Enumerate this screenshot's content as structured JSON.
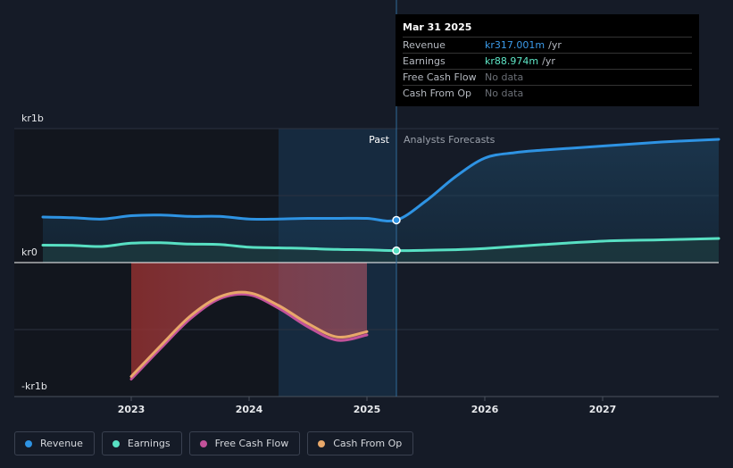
{
  "colors": {
    "revenue": "#2e93e3",
    "earnings": "#58e0c3",
    "free_cash_flow": "#c2529a",
    "cash_from_op": "#e8a86a",
    "background": "#151b27"
  },
  "tooltip": {
    "date": "Mar 31 2025",
    "rows": [
      {
        "label": "Revenue",
        "value": "kr317.001m",
        "unit": "/yr"
      },
      {
        "label": "Earnings",
        "value": "kr88.974m",
        "unit": "/yr"
      },
      {
        "label": "Free Cash Flow",
        "value": "No data"
      },
      {
        "label": "Cash From Op",
        "value": "No data"
      }
    ]
  },
  "legend": [
    {
      "label": "Revenue",
      "color": "#2e93e3"
    },
    {
      "label": "Earnings",
      "color": "#58e0c3"
    },
    {
      "label": "Free Cash Flow",
      "color": "#c2529a"
    },
    {
      "label": "Cash From Op",
      "color": "#e8a86a"
    }
  ],
  "chart_data": {
    "type": "line",
    "past_label": "Past",
    "forecast_label": "Analysts Forecasts",
    "y_tick_labels": [
      "kr1b",
      "kr0",
      "-kr1b"
    ],
    "y_ticks": [
      1000,
      0,
      -1000
    ],
    "ylim": [
      -1000,
      1000
    ],
    "x_tick_labels": [
      "2023",
      "2024",
      "2025",
      "2026",
      "2027"
    ],
    "x_ticks": [
      2023,
      2024,
      2025,
      2026,
      2027
    ],
    "xlim": [
      2022.23,
      2027.98
    ],
    "forecast_start": 2025.25,
    "series": [
      {
        "name": "Revenue",
        "x": [
          2022.25,
          2022.5,
          2022.75,
          2023.0,
          2023.25,
          2023.5,
          2023.75,
          2024.0,
          2024.25,
          2024.5,
          2024.75,
          2025.0,
          2025.25,
          2025.5,
          2025.75,
          2026.0,
          2026.25,
          2026.5,
          2027.0,
          2027.5,
          2028.0
        ],
        "values": [
          340,
          335,
          325,
          350,
          355,
          345,
          345,
          325,
          325,
          330,
          330,
          330,
          317,
          460,
          640,
          780,
          820,
          840,
          870,
          900,
          920
        ]
      },
      {
        "name": "Earnings",
        "x": [
          2022.25,
          2022.5,
          2022.75,
          2023.0,
          2023.25,
          2023.5,
          2023.75,
          2024.0,
          2024.25,
          2024.5,
          2024.75,
          2025.0,
          2025.25,
          2025.5,
          2025.75,
          2026.0,
          2026.25,
          2026.5,
          2027.0,
          2027.5,
          2028.0
        ],
        "values": [
          130,
          128,
          120,
          145,
          148,
          138,
          135,
          115,
          110,
          105,
          98,
          95,
          89,
          92,
          96,
          105,
          120,
          135,
          160,
          170,
          180
        ]
      },
      {
        "name": "Free Cash Flow",
        "x": [
          2023.0,
          2023.25,
          2023.5,
          2023.75,
          2024.0,
          2024.25,
          2024.5,
          2024.75,
          2025.0
        ],
        "values": [
          -870,
          -640,
          -420,
          -270,
          -240,
          -340,
          -480,
          -580,
          -540
        ]
      },
      {
        "name": "Cash From Op",
        "x": [
          2023.0,
          2023.25,
          2023.5,
          2023.75,
          2024.0,
          2024.25,
          2024.5,
          2024.75,
          2025.0
        ],
        "values": [
          -850,
          -620,
          -400,
          -255,
          -225,
          -320,
          -455,
          -555,
          -515
        ]
      }
    ]
  }
}
